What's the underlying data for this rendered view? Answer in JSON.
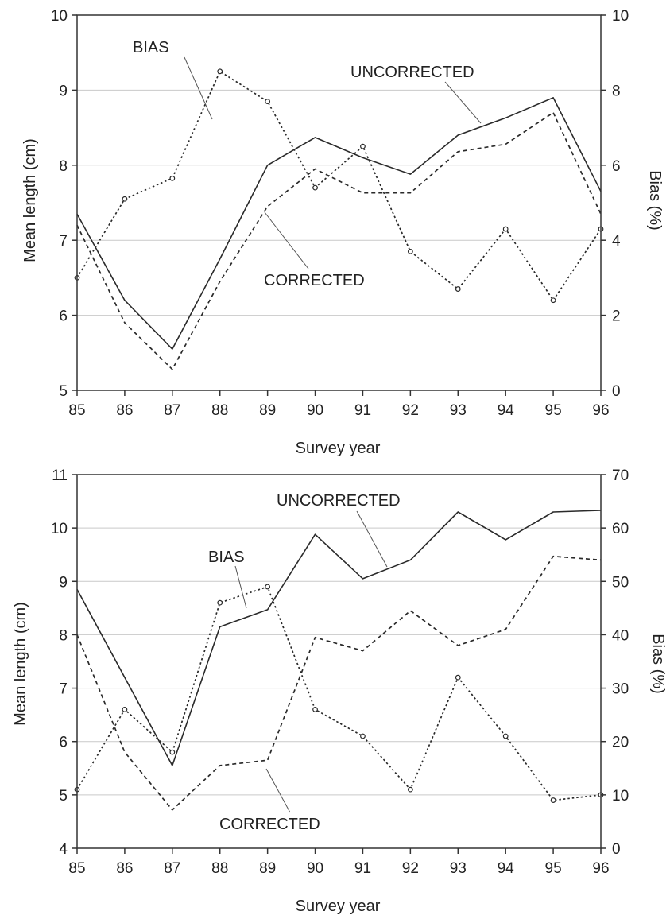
{
  "chart_data": [
    {
      "type": "line",
      "xlabel": "Survey year",
      "ylabel": "Mean length (cm)",
      "y2label": "Bias (%)",
      "categories": [
        "85",
        "86",
        "87",
        "88",
        "89",
        "90",
        "91",
        "92",
        "93",
        "94",
        "95",
        "96"
      ],
      "ylim": [
        5,
        10
      ],
      "y2lim": [
        0,
        10
      ],
      "yticks": [
        "5",
        "6",
        "7",
        "8",
        "9",
        "10"
      ],
      "y2ticks": [
        "0",
        "2",
        "4",
        "6",
        "8",
        "10"
      ],
      "grid": "horizontal",
      "series": [
        {
          "name": "UNCORRECTED",
          "axis": "left",
          "style": "solid",
          "values": [
            7.35,
            6.2,
            5.55,
            6.75,
            8.0,
            8.37,
            8.1,
            7.88,
            8.4,
            8.63,
            8.9,
            7.65
          ]
        },
        {
          "name": "CORRECTED",
          "axis": "left",
          "style": "dashed",
          "values": [
            7.2,
            5.9,
            5.28,
            6.45,
            7.45,
            7.95,
            7.63,
            7.63,
            8.18,
            8.28,
            8.7,
            7.35
          ]
        },
        {
          "name": "BIAS",
          "axis": "right",
          "style": "dotted",
          "markers": true,
          "values": [
            3.0,
            5.1,
            5.65,
            8.5,
            7.7,
            5.4,
            6.5,
            3.7,
            2.7,
            4.3,
            2.4,
            4.3
          ]
        }
      ],
      "annotations": [
        {
          "text": "BIAS"
        },
        {
          "text": "UNCORRECTED"
        },
        {
          "text": "CORRECTED"
        }
      ]
    },
    {
      "type": "line",
      "xlabel": "Survey year",
      "ylabel": "Mean length (cm)",
      "y2label": "Bias (%)",
      "categories": [
        "85",
        "86",
        "87",
        "88",
        "89",
        "90",
        "91",
        "92",
        "93",
        "94",
        "95",
        "96"
      ],
      "ylim": [
        4,
        11
      ],
      "y2lim": [
        0,
        70
      ],
      "yticks": [
        "4",
        "5",
        "6",
        "7",
        "8",
        "9",
        "10",
        "11"
      ],
      "y2ticks": [
        "0",
        "10",
        "20",
        "30",
        "40",
        "50",
        "60",
        "70"
      ],
      "grid": "horizontal",
      "series": [
        {
          "name": "UNCORRECTED",
          "axis": "left",
          "style": "solid",
          "values": [
            8.85,
            7.2,
            5.55,
            8.15,
            8.47,
            9.88,
            9.05,
            9.4,
            10.3,
            9.78,
            10.3,
            10.33
          ]
        },
        {
          "name": "CORRECTED",
          "axis": "left",
          "style": "dashed",
          "values": [
            8.0,
            5.8,
            4.72,
            5.55,
            5.65,
            7.95,
            7.7,
            8.45,
            7.8,
            8.1,
            9.47,
            9.4
          ]
        },
        {
          "name": "BIAS",
          "axis": "right",
          "style": "dotted",
          "markers": true,
          "values": [
            11,
            26,
            18,
            46,
            49,
            26,
            21,
            11,
            32,
            21,
            9,
            10
          ]
        }
      ],
      "annotations": [
        {
          "text": "UNCORRECTED"
        },
        {
          "text": "BIAS"
        },
        {
          "text": "CORRECTED"
        }
      ]
    }
  ]
}
